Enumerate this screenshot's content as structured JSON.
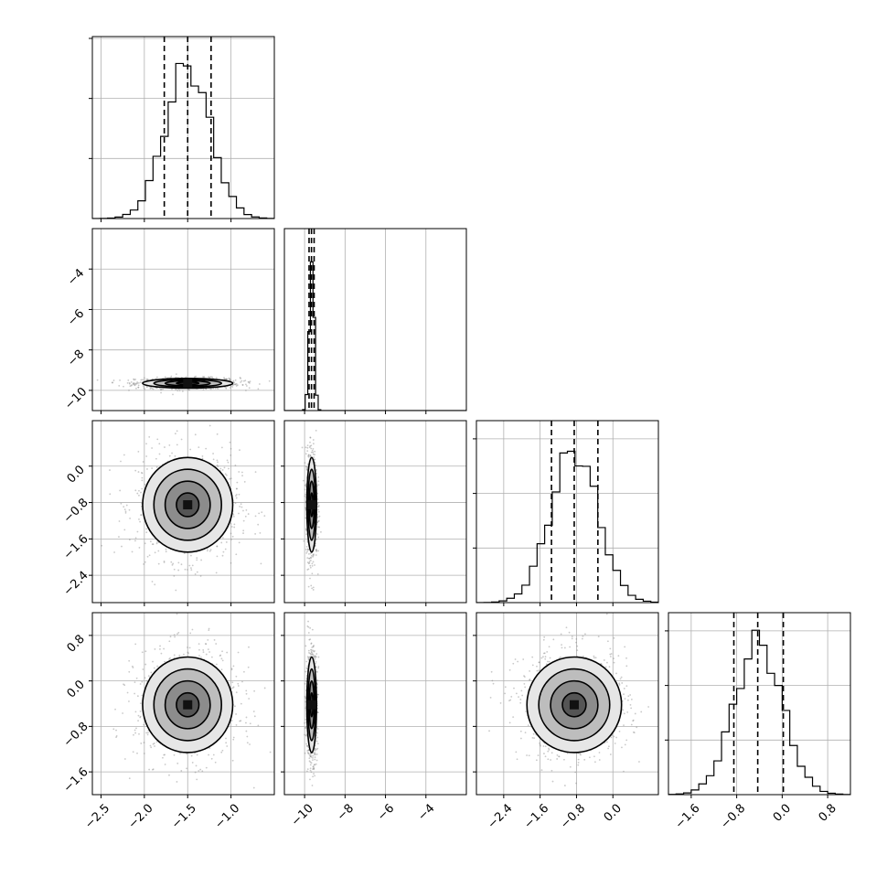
{
  "chart_data": {
    "type": "corner",
    "parameters": [
      {
        "range": [
          -2.6,
          -0.5
        ],
        "ticks": [
          -2.5,
          -2.0,
          -1.5,
          -1.0
        ],
        "tick_labels": [
          "−2.5",
          "−2.0",
          "−1.5",
          "−1.0"
        ],
        "mean": -1.5,
        "std": 0.26,
        "quantiles": [
          -1.77,
          -1.5,
          -1.23
        ],
        "hist_y_ticks": [
          0.33,
          0.66,
          0.99
        ]
      },
      {
        "range": [
          -11.0,
          -2.0
        ],
        "ticks": [
          -10,
          -8,
          -6,
          -4
        ],
        "tick_labels": [
          "−10",
          "−8",
          "−6",
          "−4"
        ],
        "mean": -9.65,
        "std": 0.12,
        "quantiles": [
          -9.78,
          -9.66,
          -9.53
        ]
      },
      {
        "range": [
          -3.0,
          1.0
        ],
        "ticks": [
          -2.4,
          -1.6,
          -0.8,
          0.0
        ],
        "tick_labels": [
          "−2.4",
          "−1.6",
          "−0.8",
          "0.0"
        ],
        "mean": -0.85,
        "std": 0.52,
        "quantiles": [
          -1.35,
          -0.85,
          -0.33
        ],
        "hist_y_ticks": [
          0.3,
          0.6,
          0.9
        ]
      },
      {
        "range": [
          -2.0,
          1.2
        ],
        "ticks": [
          -1.6,
          -0.8,
          0.0,
          0.8
        ],
        "tick_labels": [
          "−1.6",
          "−0.8",
          "0.0",
          "0.8"
        ],
        "mean": -0.42,
        "std": 0.42,
        "quantiles": [
          -0.85,
          -0.43,
          0.02
        ],
        "hist_y_ticks": [
          0.3,
          0.6,
          0.9
        ]
      }
    ],
    "grid": true,
    "quantile_lines": "dashed",
    "contour_levels": 4
  }
}
